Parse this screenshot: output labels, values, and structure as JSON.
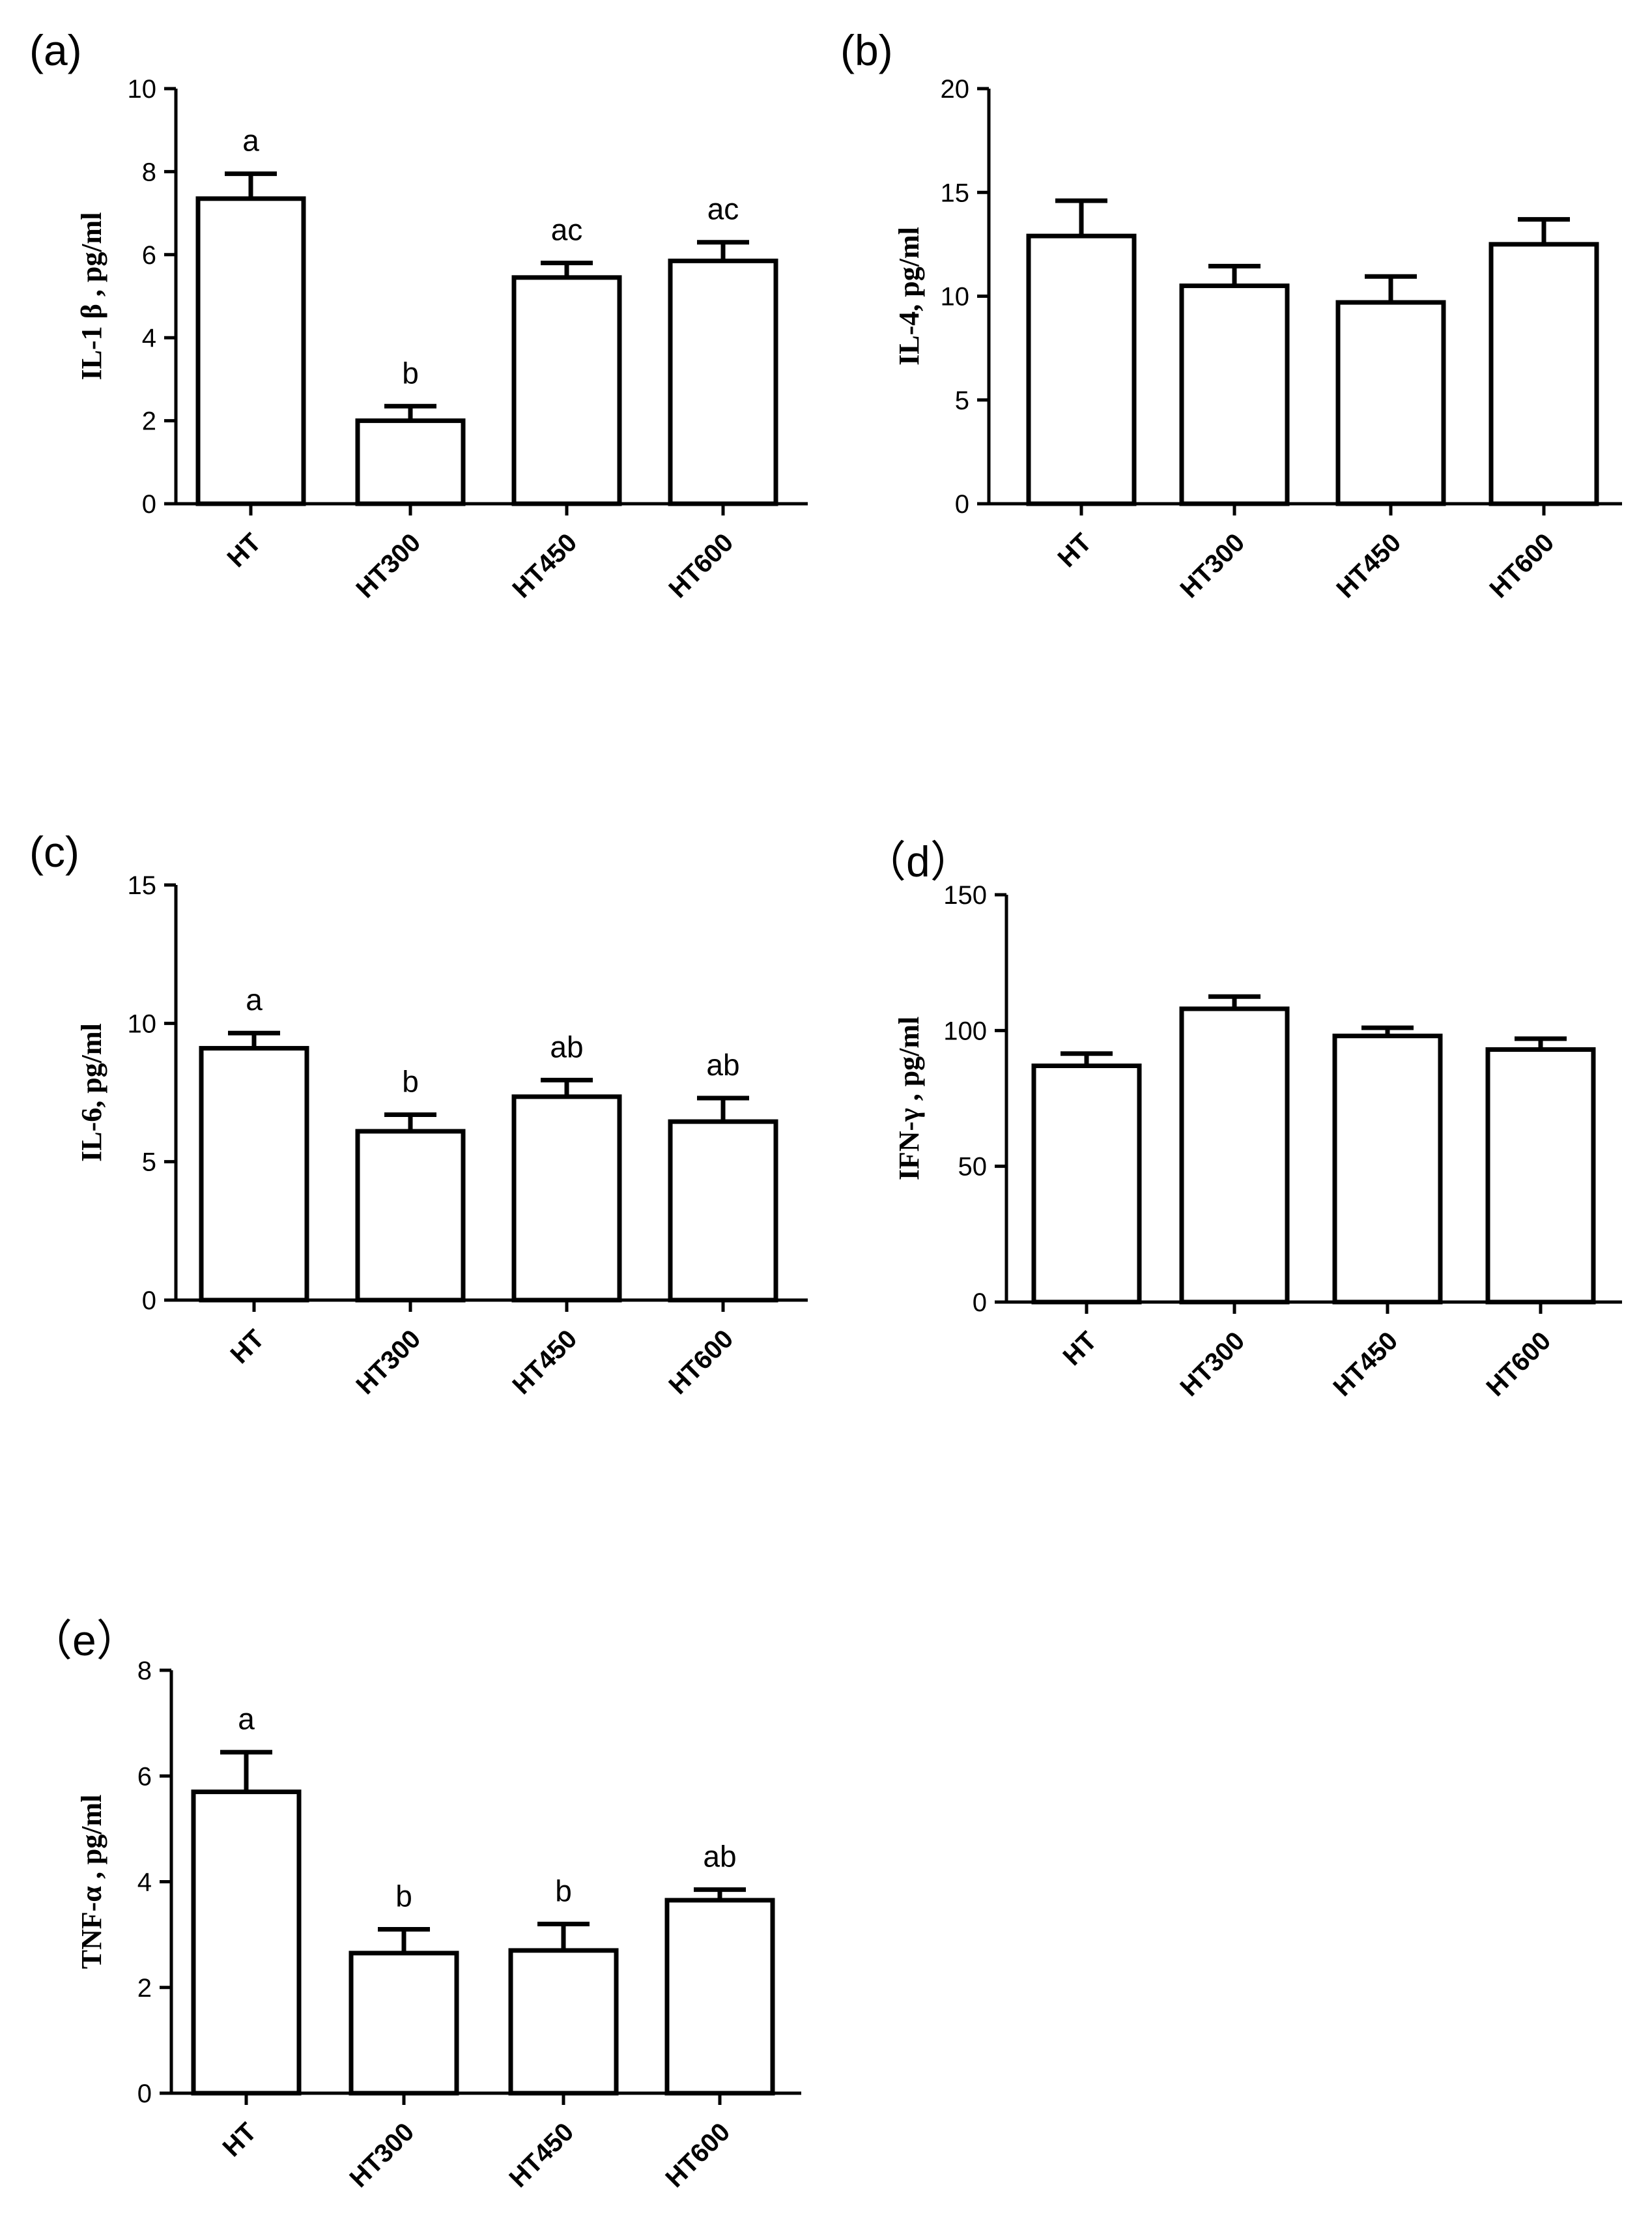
{
  "chart_data": [
    {
      "type": "bar",
      "panel": "a",
      "panel_label": "(a)",
      "title": "",
      "xlabel": "",
      "ylabel": "IL-1 β , pg/ml",
      "ylim": [
        0,
        10
      ],
      "yticks": [
        0,
        2,
        4,
        6,
        8,
        10
      ],
      "categories": [
        "HT",
        "HT300",
        "HT450",
        "HT600"
      ],
      "values": [
        7.35,
        2.0,
        5.45,
        5.85
      ],
      "errors": [
        0.6,
        0.35,
        0.35,
        0.45
      ],
      "letters": [
        "a",
        "b",
        "ac",
        "ac"
      ]
    },
    {
      "type": "bar",
      "panel": "b",
      "panel_label": "(b)",
      "title": "",
      "xlabel": "",
      "ylabel": "IL-4, pg/ml",
      "ylim": [
        0,
        20
      ],
      "yticks": [
        0,
        5,
        10,
        15,
        20
      ],
      "categories": [
        "HT",
        "HT300",
        "HT450",
        "HT600"
      ],
      "values": [
        12.9,
        10.5,
        9.7,
        12.5
      ],
      "errors": [
        1.7,
        0.95,
        1.25,
        1.2
      ],
      "letters": [
        "",
        "",
        "",
        ""
      ]
    },
    {
      "type": "bar",
      "panel": "c",
      "panel_label": "(c)",
      "title": "",
      "xlabel": "",
      "ylabel": "IL-6, pg/ml",
      "ylim": [
        0,
        15
      ],
      "yticks": [
        0,
        5,
        10,
        15
      ],
      "categories": [
        "HT",
        "HT300",
        "HT450",
        "HT600"
      ],
      "values": [
        9.1,
        6.1,
        7.35,
        6.45
      ],
      "errors": [
        0.55,
        0.6,
        0.6,
        0.85
      ],
      "letters": [
        "a",
        "b",
        "ab",
        "ab"
      ]
    },
    {
      "type": "bar",
      "panel": "d",
      "panel_label": "（d）",
      "title": "",
      "xlabel": "",
      "ylabel": "IFN-γ , pg/ml",
      "ylim": [
        0,
        150
      ],
      "yticks": [
        0,
        50,
        100,
        150
      ],
      "categories": [
        "HT",
        "HT300",
        "HT450",
        "HT600"
      ],
      "values": [
        87,
        108,
        98,
        93
      ],
      "errors": [
        4.5,
        4.5,
        3.0,
        4.0
      ],
      "letters": [
        "",
        "",
        "",
        ""
      ]
    },
    {
      "type": "bar",
      "panel": "e",
      "panel_label": "（e）",
      "title": "",
      "xlabel": "",
      "ylabel": "TNF-α , pg/ml",
      "ylim": [
        0,
        8
      ],
      "yticks": [
        0,
        2,
        4,
        6,
        8
      ],
      "categories": [
        "HT",
        "HT300",
        "HT450",
        "HT600"
      ],
      "values": [
        5.7,
        2.65,
        2.7,
        3.65
      ],
      "errors": [
        0.75,
        0.45,
        0.5,
        0.2
      ],
      "letters": [
        "a",
        "b",
        "b",
        "ab"
      ]
    }
  ]
}
